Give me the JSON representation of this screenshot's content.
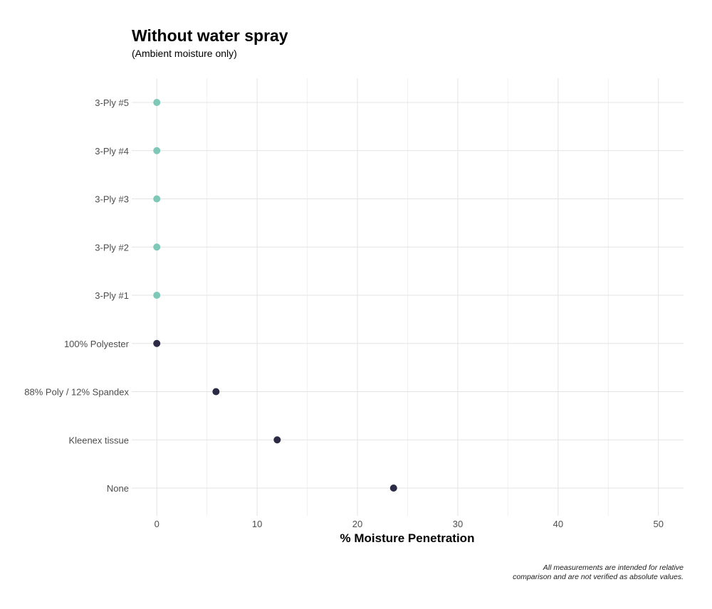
{
  "chart_data": {
    "type": "scatter",
    "title": "Without water spray",
    "subtitle": "(Ambient moisture only)",
    "xlabel": "% Moisture Penetration",
    "ylabel": "",
    "xlim": [
      -2.5,
      52.5
    ],
    "xticks": [
      "0",
      "10",
      "20",
      "30",
      "40",
      "50"
    ],
    "xtick_values": [
      0,
      10,
      20,
      30,
      40,
      50
    ],
    "grid": true,
    "legend": "none",
    "categories": [
      "3-Ply #5",
      "3-Ply #4",
      "3-Ply #3",
      "3-Ply #2",
      "3-Ply #1",
      "100% Polyester",
      "88% Poly / 12% Spandex",
      "Kleenex tissue",
      "None"
    ],
    "values": [
      0,
      0,
      0,
      0,
      0,
      0,
      5.9,
      12,
      23.6
    ],
    "point_colors": [
      "#7fc8b8",
      "#7fc8b8",
      "#7fc8b8",
      "#7fc8b8",
      "#7fc8b8",
      "#2b2b45",
      "#2b2b45",
      "#2b2b45",
      "#2b2b45"
    ],
    "caption_lines": [
      "All measurements are intended for relative",
      "comparison and are not verified as absolute values."
    ]
  }
}
